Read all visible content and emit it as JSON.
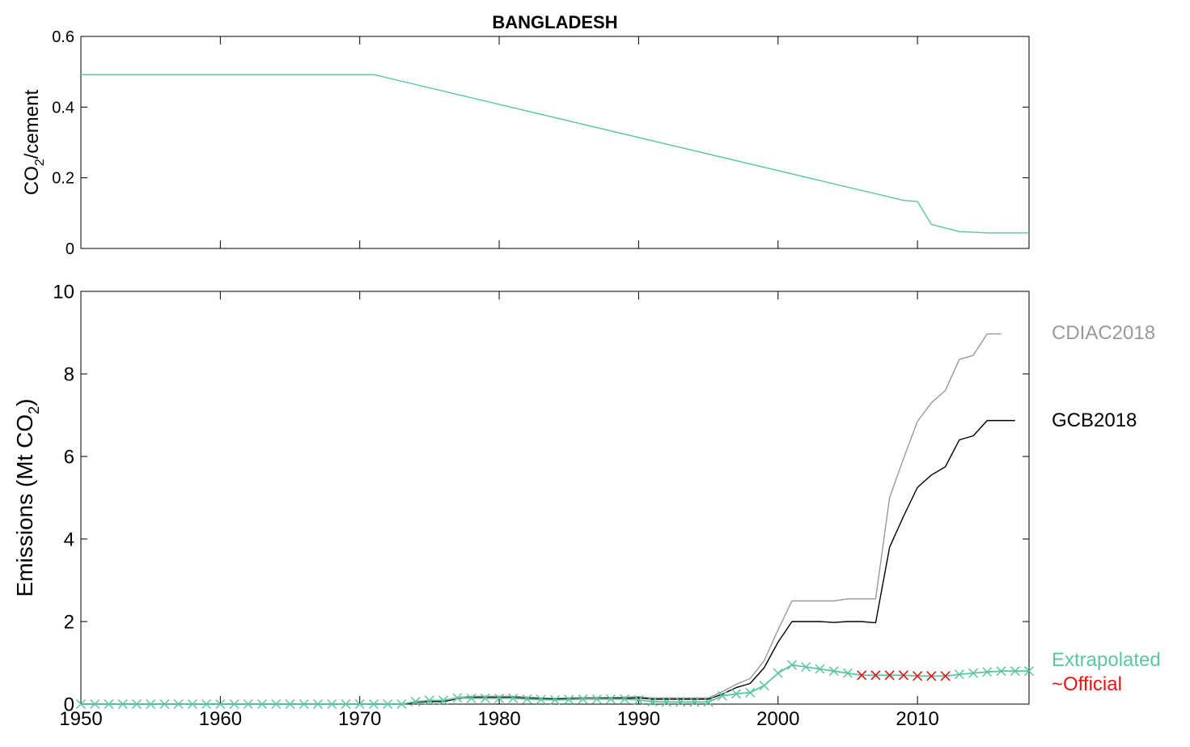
{
  "chart_data": [
    {
      "type": "line",
      "title": "BANGLADESH",
      "ylabel_main": "CO",
      "ylabel_sub": "2",
      "ylabel_suffix": "/cement",
      "xlim": [
        1950,
        2018
      ],
      "ylim": [
        0,
        0.6
      ],
      "yticks": [
        "0",
        "0.2",
        "0.4",
        "0.6"
      ],
      "ytick_values": [
        0,
        0.2,
        0.4,
        0.6
      ],
      "xticks": [
        1950,
        1960,
        1970,
        1980,
        1990,
        2000,
        2010
      ],
      "show_xtick_labels": false,
      "series": [
        {
          "color": "#5cc6a0",
          "x": [
            1950,
            1971,
            2009,
            2010,
            2011,
            2013,
            2015,
            2018
          ],
          "values": [
            0.492,
            0.492,
            0.136,
            0.133,
            0.068,
            0.048,
            0.044,
            0.044
          ]
        }
      ]
    },
    {
      "type": "line",
      "ylabel_main": "Emissions (Mt CO",
      "ylabel_sub": "2",
      "ylabel_suffix": ")",
      "xlim": [
        1950,
        2018
      ],
      "ylim": [
        0,
        10
      ],
      "yticks": [
        "0",
        "2",
        "4",
        "6",
        "8",
        "10"
      ],
      "ytick_values": [
        0,
        2,
        4,
        6,
        8,
        10
      ],
      "xticks": [
        1950,
        1960,
        1970,
        1980,
        1990,
        2000,
        2010
      ],
      "xtick_labels": [
        "1950",
        "1960",
        "1970",
        "1980",
        "1990",
        "2000",
        "2010"
      ],
      "series": [
        {
          "name": "CDIAC2018",
          "color": "#999999",
          "x": [
            1950,
            1951,
            1952,
            1953,
            1954,
            1955,
            1956,
            1957,
            1958,
            1959,
            1960,
            1961,
            1962,
            1963,
            1964,
            1965,
            1966,
            1967,
            1968,
            1969,
            1970,
            1971,
            1972,
            1973,
            1974,
            1975,
            1976,
            1977,
            1978,
            1979,
            1980,
            1981,
            1982,
            1983,
            1984,
            1985,
            1986,
            1987,
            1988,
            1989,
            1990,
            1991,
            1992,
            1993,
            1994,
            1995,
            1996,
            1997,
            1998,
            1999,
            2000,
            2001,
            2002,
            2003,
            2004,
            2005,
            2006,
            2007,
            2008,
            2009,
            2010,
            2011,
            2012,
            2013,
            2014,
            2015,
            2016
          ],
          "values": [
            0,
            0,
            0,
            0,
            0,
            0,
            0,
            0,
            0,
            0,
            0,
            0,
            0,
            0,
            0,
            0,
            0,
            0,
            0,
            0,
            0,
            0,
            0,
            0,
            0.05,
            0.08,
            0.08,
            0.16,
            0.19,
            0.19,
            0.19,
            0.19,
            0.17,
            0.15,
            0.14,
            0.15,
            0.16,
            0.16,
            0.16,
            0.17,
            0.18,
            0.15,
            0.15,
            0.15,
            0.15,
            0.15,
            0.3,
            0.48,
            0.62,
            1.05,
            1.8,
            2.5,
            2.5,
            2.5,
            2.5,
            2.55,
            2.55,
            2.55,
            5.0,
            5.95,
            6.85,
            7.3,
            7.6,
            8.35,
            8.45,
            8.97,
            8.97
          ]
        },
        {
          "name": "GCB2018",
          "color": "#000000",
          "x": [
            1950,
            1951,
            1952,
            1953,
            1954,
            1955,
            1956,
            1957,
            1958,
            1959,
            1960,
            1961,
            1962,
            1963,
            1964,
            1965,
            1966,
            1967,
            1968,
            1969,
            1970,
            1971,
            1972,
            1973,
            1974,
            1975,
            1976,
            1977,
            1978,
            1979,
            1980,
            1981,
            1982,
            1983,
            1984,
            1985,
            1986,
            1987,
            1988,
            1989,
            1990,
            1991,
            1992,
            1993,
            1994,
            1995,
            1996,
            1997,
            1998,
            1999,
            2000,
            2001,
            2002,
            2003,
            2004,
            2005,
            2006,
            2007,
            2008,
            2009,
            2010,
            2011,
            2012,
            2013,
            2014,
            2015,
            2016,
            2017
          ],
          "values": [
            0,
            0,
            0,
            0,
            0,
            0,
            0,
            0,
            0,
            0,
            0,
            0,
            0,
            0,
            0,
            0,
            0,
            0,
            0,
            0,
            0,
            0,
            0,
            0,
            0.04,
            0.06,
            0.06,
            0.13,
            0.16,
            0.16,
            0.16,
            0.16,
            0.14,
            0.13,
            0.12,
            0.13,
            0.13,
            0.13,
            0.14,
            0.14,
            0.15,
            0.12,
            0.12,
            0.12,
            0.12,
            0.12,
            0.24,
            0.4,
            0.5,
            0.88,
            1.5,
            2.0,
            2.0,
            2.0,
            1.98,
            2.0,
            2.0,
            1.97,
            3.8,
            4.55,
            5.25,
            5.55,
            5.75,
            6.4,
            6.5,
            6.87,
            6.87,
            6.87
          ]
        },
        {
          "name": "Extrapolated",
          "color": "#5cc6a0",
          "x": [
            1950,
            1951,
            1952,
            1953,
            1954,
            1955,
            1956,
            1957,
            1958,
            1959,
            1960,
            1961,
            1962,
            1963,
            1964,
            1965,
            1966,
            1967,
            1968,
            1969,
            1970,
            1971,
            1972,
            1973,
            1974,
            1975,
            1976,
            1977,
            1978,
            1979,
            1980,
            1981,
            1982,
            1983,
            1984,
            1985,
            1986,
            1987,
            1988,
            1989,
            1990,
            1991,
            1992,
            1993,
            1994,
            1995,
            1996,
            1997,
            1998,
            1999,
            2000,
            2001,
            2002,
            2003,
            2004,
            2005,
            2006,
            2007,
            2008,
            2009,
            2010,
            2011,
            2012,
            2013,
            2014,
            2015,
            2016,
            2017,
            2018
          ],
          "values": [
            0,
            0,
            0,
            0,
            0,
            0,
            0,
            0,
            0,
            0,
            0,
            0,
            0,
            0,
            0,
            0,
            0,
            0,
            0,
            0,
            0,
            0,
            0,
            0,
            0.06,
            0.09,
            0.09,
            0.15,
            0.14,
            0.14,
            0.14,
            0.14,
            0.12,
            0.11,
            0.1,
            0.11,
            0.12,
            0.12,
            0.12,
            0.12,
            0.1,
            0.06,
            0.05,
            0.05,
            0.05,
            0.05,
            0.2,
            0.25,
            0.28,
            0.45,
            0.75,
            0.95,
            0.9,
            0.85,
            0.8,
            0.75,
            0.7,
            0.7,
            0.7,
            0.7,
            0.68,
            0.68,
            0.68,
            0.72,
            0.75,
            0.78,
            0.8,
            0.8,
            0.8
          ]
        },
        {
          "name": "~Official",
          "color": "#ee1111",
          "x": [
            2006,
            2007,
            2008,
            2009,
            2010,
            2011,
            2012
          ],
          "values": [
            0.7,
            0.7,
            0.7,
            0.7,
            0.68,
            0.68,
            0.68
          ]
        }
      ]
    }
  ]
}
